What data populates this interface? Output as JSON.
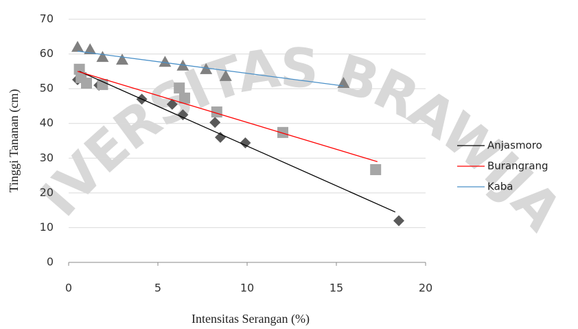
{
  "chart_data": {
    "type": "scatter",
    "watermark": "UNIVERSITAS BRAWIJAYA",
    "x_label": "Intensitas Serangan (%)",
    "y_label": "Tinggi Tananan (cm)",
    "xlim": [
      0,
      20
    ],
    "xticks": [
      0,
      5,
      10,
      15,
      20
    ],
    "ylim": [
      0,
      70
    ],
    "yticks": [
      0,
      10,
      20,
      30,
      40,
      50,
      60,
      70
    ],
    "grid": true,
    "legend": "right",
    "series": [
      {
        "name": "Anjasmoro",
        "marker": "diamond",
        "marker_color": "#595959",
        "color": "#000000",
        "x": [
          0.5,
          1.7,
          4.1,
          5.8,
          6.4,
          8.2,
          8.5,
          9.9,
          18.5
        ],
        "values": [
          52.6,
          51,
          47,
          45.5,
          42.5,
          40.3,
          36,
          34.4,
          12
        ],
        "trendline": {
          "x": [
            0.6,
            18.3
          ],
          "values": [
            55,
            14.5
          ]
        }
      },
      {
        "name": "Burangrang",
        "marker": "square",
        "marker_color": "#a6a6a6",
        "color": "#ff0000",
        "x": [
          0.6,
          0.7,
          1,
          1.9,
          6.2,
          6.5,
          8.3,
          12,
          17.2
        ],
        "values": [
          55.6,
          53.2,
          51.6,
          51.2,
          50.2,
          47.3,
          43.3,
          37.4,
          26.7
        ],
        "trendline": {
          "x": [
            0.5,
            17.3
          ],
          "values": [
            55,
            29
          ]
        }
      },
      {
        "name": "Kaba",
        "marker": "triangle",
        "marker_color": "#808080",
        "color": "#4a90c8",
        "x": [
          0.5,
          1.2,
          1.9,
          3,
          5.4,
          6.4,
          7.7,
          8.8,
          15.4
        ],
        "values": [
          62,
          61.3,
          59.1,
          58.3,
          57.7,
          56.6,
          55.6,
          53.6,
          51.6
        ],
        "trendline": {
          "x": [
            0.5,
            15.4
          ],
          "values": [
            60.8,
            50.8
          ]
        }
      }
    ]
  }
}
